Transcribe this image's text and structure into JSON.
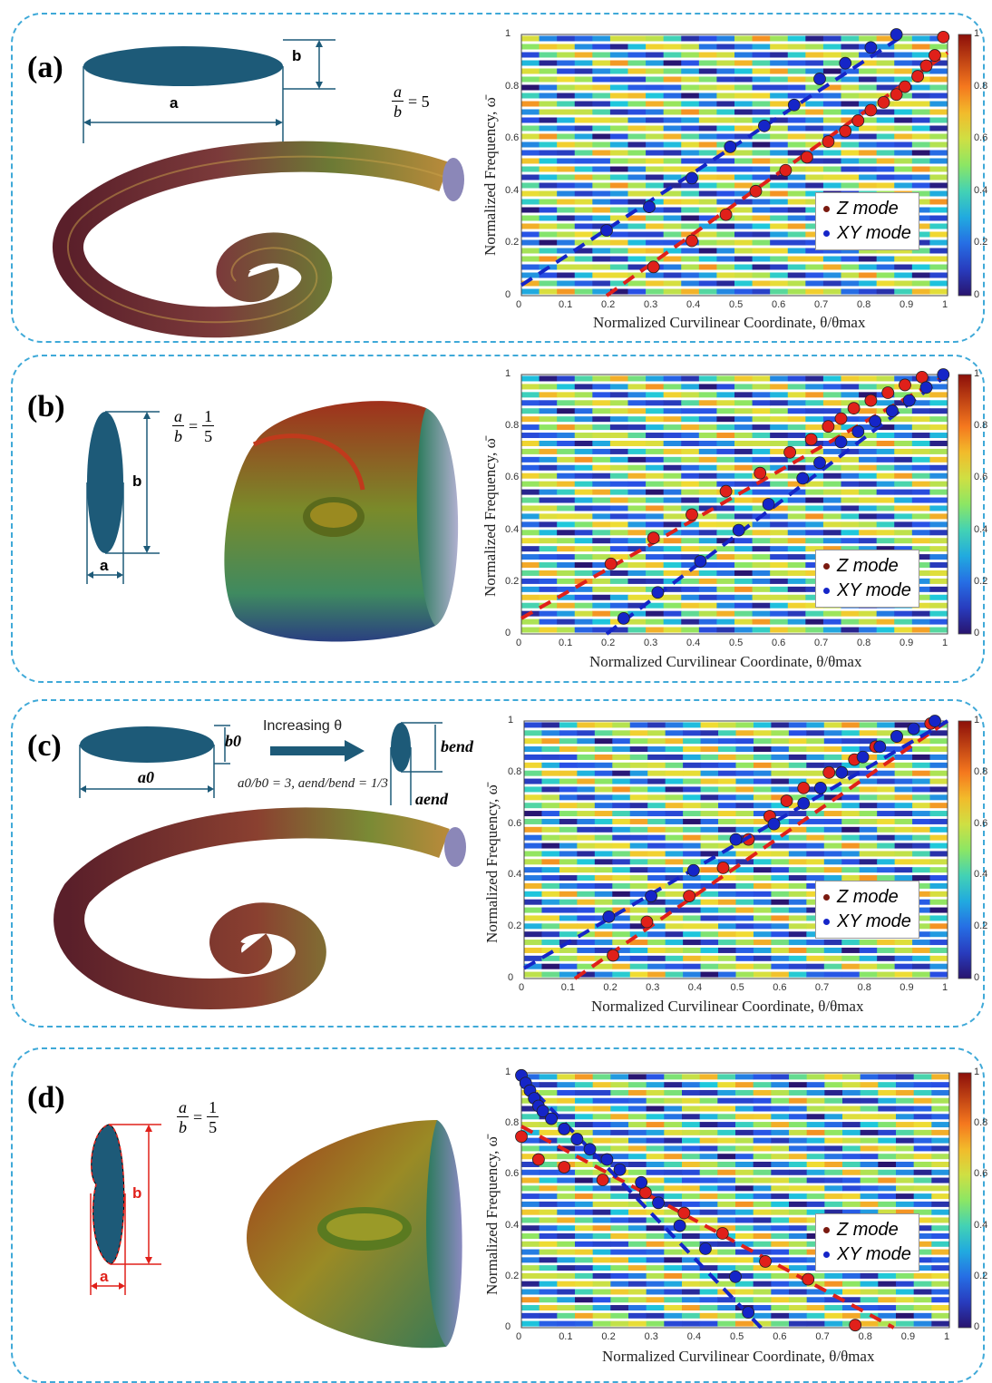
{
  "figure": {
    "panels": [
      {
        "id": "a",
        "label": "(a)",
        "dim_labels": [
          "a",
          "b"
        ],
        "ratio": {
          "num": "a",
          "den": "b",
          "eq": "= 5"
        },
        "ylabel": "Normalized Frequency, ω̄",
        "xlabel": "Normalized Curvilinear Coordinate, θ/θmax",
        "legend": [
          "Z mode",
          "XY mode"
        ]
      },
      {
        "id": "b",
        "label": "(b)",
        "dim_labels": [
          "b",
          "a"
        ],
        "ratio": {
          "num": "a",
          "den": "b",
          "eq": "=",
          "num2": "1",
          "den2": "5"
        },
        "ylabel": "Normalized Frequency, ω̄",
        "xlabel": "Normalized Curvilinear Coordinate, θ/θmax",
        "legend": [
          "Z mode",
          "XY mode"
        ]
      },
      {
        "id": "c",
        "label": "(c)",
        "dim_labels": [
          "b0",
          "a0",
          "bend",
          "aend"
        ],
        "arrow_text": "Increasing θ",
        "ratio_text": "a0/b0 = 3, aend/bend = 1/3",
        "ylabel": "Normalized Frequency, ω̄",
        "xlabel": "Normalized Curvilinear Coordinate, θ/θmax",
        "legend": [
          "Z mode",
          "XY mode"
        ]
      },
      {
        "id": "d",
        "label": "(d)",
        "dim_labels": [
          "b",
          "a"
        ],
        "ratio": {
          "num": "a",
          "den": "b",
          "eq": "=",
          "num2": "1",
          "den2": "5"
        },
        "ylabel": "Normalized Frequency, ω̄",
        "xlabel": "Normalized Curvilinear Coordinate, θ/θmax",
        "legend": [
          "Z mode",
          "XY mode"
        ]
      }
    ],
    "xticks": [
      "0",
      "0.1",
      "0.2",
      "0.3",
      "0.4",
      "0.5",
      "0.6",
      "0.7",
      "0.8",
      "0.9",
      "1"
    ],
    "yticks": [
      "0",
      "0.2",
      "0.4",
      "0.6",
      "0.8",
      "1"
    ],
    "cbticks": [
      "0",
      "0.2",
      "0.4",
      "0.6",
      "0.8",
      "1"
    ],
    "colors": {
      "z_mode": "#e0201a",
      "xy_mode": "#1525c8",
      "border": "#3fa9d8"
    }
  },
  "chart_data": [
    {
      "type": "scatter",
      "panel": "a",
      "xlim": [
        0,
        1
      ],
      "ylim": [
        0,
        1
      ],
      "series": [
        {
          "name": "Z mode",
          "fit": [
            [
              0.2,
              0.0
            ],
            [
              1.0,
              0.93
            ]
          ],
          "x": [
            0.31,
            0.4,
            0.48,
            0.55,
            0.62,
            0.67,
            0.72,
            0.76,
            0.79,
            0.82,
            0.85,
            0.88,
            0.9,
            0.93,
            0.95,
            0.97,
            0.99
          ],
          "y": [
            0.11,
            0.21,
            0.31,
            0.4,
            0.48,
            0.53,
            0.59,
            0.63,
            0.67,
            0.71,
            0.74,
            0.77,
            0.8,
            0.84,
            0.88,
            0.92,
            0.99
          ]
        },
        {
          "name": "XY mode",
          "fit": [
            [
              0.0,
              0.04
            ],
            [
              0.9,
              1.0
            ]
          ],
          "x": [
            0.2,
            0.3,
            0.4,
            0.49,
            0.57,
            0.64,
            0.7,
            0.76,
            0.82,
            0.88
          ],
          "y": [
            0.25,
            0.34,
            0.45,
            0.57,
            0.65,
            0.73,
            0.83,
            0.89,
            0.95,
            1.0
          ]
        }
      ]
    },
    {
      "type": "scatter",
      "panel": "b",
      "xlim": [
        0,
        1
      ],
      "ylim": [
        0,
        1
      ],
      "series": [
        {
          "name": "Z mode",
          "fit": [
            [
              0.0,
              0.06
            ],
            [
              1.0,
              1.0
            ]
          ],
          "x": [
            0.21,
            0.31,
            0.4,
            0.48,
            0.56,
            0.63,
            0.68,
            0.72,
            0.75,
            0.78,
            0.82,
            0.86,
            0.9,
            0.94
          ],
          "y": [
            0.27,
            0.37,
            0.46,
            0.55,
            0.62,
            0.7,
            0.75,
            0.8,
            0.83,
            0.87,
            0.9,
            0.93,
            0.96,
            0.99
          ]
        },
        {
          "name": "XY mode",
          "fit": [
            [
              0.2,
              0.0
            ],
            [
              1.0,
              1.0
            ]
          ],
          "x": [
            0.24,
            0.32,
            0.42,
            0.51,
            0.58,
            0.66,
            0.7,
            0.75,
            0.79,
            0.83,
            0.87,
            0.91,
            0.95,
            0.99
          ],
          "y": [
            0.06,
            0.16,
            0.28,
            0.4,
            0.5,
            0.6,
            0.66,
            0.74,
            0.78,
            0.82,
            0.86,
            0.9,
            0.95,
            1.0
          ]
        }
      ]
    },
    {
      "type": "scatter",
      "panel": "c",
      "xlim": [
        0,
        1
      ],
      "ylim": [
        0,
        1
      ],
      "series": [
        {
          "name": "Z mode",
          "fit": [
            [
              0.12,
              0.0
            ],
            [
              1.0,
              1.0
            ]
          ],
          "x": [
            0.21,
            0.29,
            0.39,
            0.47,
            0.53,
            0.58,
            0.62,
            0.66,
            0.72,
            0.78,
            0.83,
            0.88,
            0.92,
            0.96
          ],
          "y": [
            0.09,
            0.22,
            0.32,
            0.43,
            0.54,
            0.63,
            0.69,
            0.74,
            0.8,
            0.85,
            0.9,
            0.94,
            0.97,
            0.99
          ]
        },
        {
          "name": "XY mode",
          "fit": [
            [
              0.0,
              0.04
            ],
            [
              1.0,
              1.0
            ]
          ],
          "x": [
            0.2,
            0.3,
            0.4,
            0.5,
            0.59,
            0.66,
            0.7,
            0.75,
            0.8,
            0.84,
            0.88,
            0.92,
            0.97
          ],
          "y": [
            0.24,
            0.32,
            0.42,
            0.54,
            0.6,
            0.68,
            0.74,
            0.8,
            0.86,
            0.9,
            0.94,
            0.97,
            1.0
          ]
        }
      ]
    },
    {
      "type": "scatter",
      "panel": "d",
      "xlim": [
        0,
        1
      ],
      "ylim": [
        0,
        1
      ],
      "series": [
        {
          "name": "Z mode",
          "fit": [
            [
              0.0,
              0.79
            ],
            [
              0.87,
              0.0
            ]
          ],
          "x": [
            0.0,
            0.04,
            0.1,
            0.19,
            0.29,
            0.38,
            0.47,
            0.57,
            0.67,
            0.78
          ],
          "y": [
            0.75,
            0.66,
            0.63,
            0.58,
            0.53,
            0.45,
            0.37,
            0.26,
            0.19,
            0.01
          ]
        },
        {
          "name": "XY mode",
          "fit": [
            [
              0.0,
              0.98
            ],
            [
              0.56,
              0.0
            ]
          ],
          "x": [
            0.0,
            0.01,
            0.02,
            0.03,
            0.04,
            0.05,
            0.07,
            0.1,
            0.13,
            0.16,
            0.2,
            0.23,
            0.28,
            0.32,
            0.37,
            0.43,
            0.5,
            0.53
          ],
          "y": [
            0.99,
            0.96,
            0.93,
            0.9,
            0.87,
            0.85,
            0.82,
            0.78,
            0.74,
            0.7,
            0.66,
            0.62,
            0.57,
            0.49,
            0.4,
            0.31,
            0.2,
            0.06
          ]
        }
      ]
    }
  ]
}
